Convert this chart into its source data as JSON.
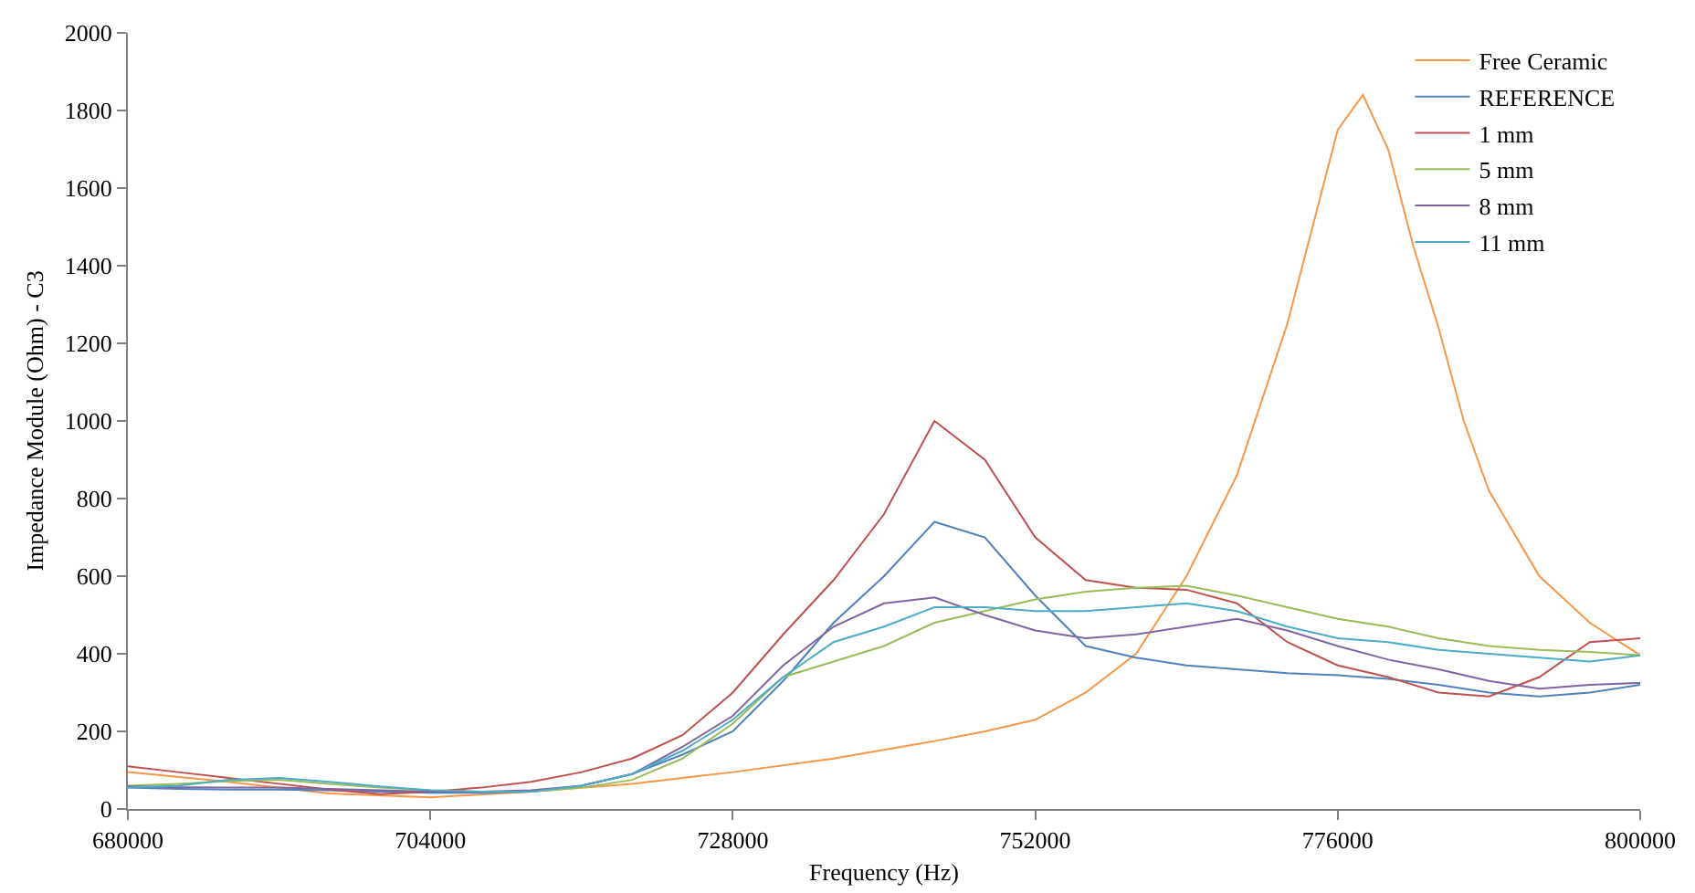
{
  "chart_data": {
    "type": "line",
    "xlabel": "Frequency (Hz)",
    "ylabel": "Impedance Module (Ohm) - C3",
    "x": [
      680000,
      684000,
      688000,
      692000,
      696000,
      700000,
      704000,
      708000,
      712000,
      716000,
      720000,
      724000,
      728000,
      732000,
      736000,
      740000,
      744000,
      748000,
      752000,
      756000,
      760000,
      764000,
      768000,
      772000,
      776000,
      780000,
      784000,
      788000,
      792000,
      796000,
      800000
    ],
    "series": [
      {
        "name": "Free Ceramic",
        "color": "#f79646",
        "x": [
          680000,
          688000,
          696000,
          704000,
          712000,
          720000,
          728000,
          736000,
          744000,
          748000,
          752000,
          756000,
          760000,
          764000,
          768000,
          772000,
          774000,
          776000,
          778000,
          780000,
          782000,
          784000,
          786000,
          788000,
          792000,
          796000,
          800000
        ],
        "values": [
          95,
          70,
          40,
          30,
          45,
          65,
          95,
          130,
          175,
          200,
          230,
          300,
          400,
          600,
          860,
          1250,
          1500,
          1750,
          1840,
          1700,
          1450,
          1240,
          1000,
          820,
          600,
          480,
          396
        ]
      },
      {
        "name": "REFERENCE",
        "color": "#4f81bd",
        "values": [
          55,
          52,
          50,
          50,
          48,
          45,
          42,
          42,
          45,
          60,
          90,
          140,
          200,
          330,
          480,
          600,
          740,
          700,
          550,
          420,
          390,
          370,
          360,
          350,
          345,
          335,
          320,
          300,
          290,
          300,
          320
        ]
      },
      {
        "name": "1 mm",
        "color": "#c0504d",
        "values": [
          110,
          95,
          80,
          65,
          50,
          38,
          45,
          55,
          70,
          95,
          130,
          190,
          300,
          450,
          590,
          760,
          1000,
          900,
          700,
          590,
          570,
          565,
          530,
          430,
          370,
          340,
          300,
          290,
          340,
          430,
          440
        ]
      },
      {
        "name": "5 mm",
        "color": "#9bbb59",
        "values": [
          60,
          65,
          72,
          75,
          65,
          55,
          48,
          45,
          45,
          55,
          75,
          130,
          220,
          340,
          380,
          420,
          480,
          510,
          540,
          560,
          570,
          575,
          550,
          520,
          490,
          470,
          440,
          420,
          410,
          405,
          396
        ]
      },
      {
        "name": "8 mm",
        "color": "#8064a2",
        "values": [
          58,
          56,
          55,
          55,
          52,
          48,
          45,
          45,
          48,
          60,
          90,
          160,
          240,
          370,
          470,
          530,
          545,
          500,
          460,
          440,
          450,
          470,
          490,
          460,
          420,
          385,
          360,
          330,
          310,
          320,
          325
        ]
      },
      {
        "name": "11 mm",
        "color": "#4bacc6",
        "values": [
          55,
          60,
          75,
          80,
          70,
          58,
          48,
          45,
          45,
          60,
          90,
          150,
          230,
          340,
          430,
          470,
          520,
          520,
          510,
          510,
          520,
          530,
          510,
          470,
          440,
          430,
          410,
          400,
          390,
          380,
          396
        ]
      }
    ],
    "xlim": [
      680000,
      800000
    ],
    "xticks": [
      680000,
      704000,
      728000,
      752000,
      776000,
      800000
    ],
    "ylim": [
      0,
      2000
    ],
    "yticks": [
      0,
      200,
      400,
      600,
      800,
      1000,
      1200,
      1400,
      1600,
      1800,
      2000
    ],
    "grid": false,
    "legend": "top right",
    "marker": "none",
    "line_style": "solid"
  }
}
